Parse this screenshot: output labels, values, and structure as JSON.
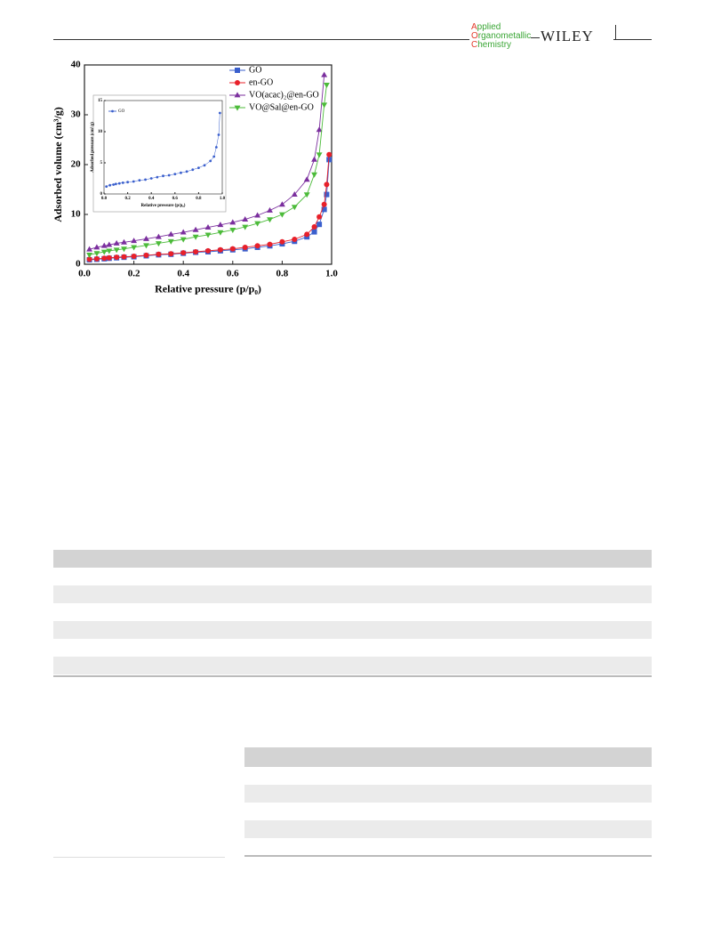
{
  "header": {
    "journal": [
      "Applied",
      "Organometallic",
      "Chemistry"
    ],
    "publisher": "WILEY"
  },
  "chart_data": [
    {
      "type": "line",
      "xlabel": "Relative pressure (p/p₀)",
      "ylabel": "Adsorbed volume (cm³/g)",
      "xlim": [
        0,
        1
      ],
      "ylim": [
        0,
        40
      ],
      "xticks": [
        {
          "value": 0,
          "label": "0.0"
        },
        {
          "value": 0.2,
          "label": "0.2"
        },
        {
          "value": 0.4,
          "label": "0.4"
        },
        {
          "value": 0.6,
          "label": "0.6"
        },
        {
          "value": 0.8,
          "label": "0.8"
        },
        {
          "value": 1,
          "label": "1.0"
        }
      ],
      "yticks": [
        0,
        10,
        20,
        30,
        40
      ],
      "x": [
        0.02,
        0.05,
        0.08,
        0.1,
        0.13,
        0.16,
        0.2,
        0.25,
        0.3,
        0.35,
        0.4,
        0.45,
        0.5,
        0.55,
        0.6,
        0.65,
        0.7,
        0.75,
        0.8,
        0.85,
        0.9,
        0.93,
        0.95,
        0.97,
        0.98,
        0.99
      ],
      "series": [
        {
          "name": "GO",
          "color": "#3a5fcd",
          "marker": "square",
          "values": [
            0.9,
            1.0,
            1.1,
            1.2,
            1.3,
            1.4,
            1.5,
            1.7,
            1.9,
            2.0,
            2.2,
            2.4,
            2.5,
            2.7,
            2.9,
            3.1,
            3.4,
            3.7,
            4.1,
            4.6,
            5.5,
            6.5,
            8,
            11,
            14,
            21
          ]
        },
        {
          "name": "en-GO",
          "color": "#e8202a",
          "marker": "circle",
          "values": [
            1.0,
            1.1,
            1.2,
            1.3,
            1.4,
            1.5,
            1.6,
            1.8,
            2.0,
            2.1,
            2.3,
            2.5,
            2.7,
            2.9,
            3.1,
            3.4,
            3.7,
            4.0,
            4.5,
            5.0,
            6.0,
            7.5,
            9.5,
            12,
            16,
            22
          ]
        },
        {
          "name": "VO(acac)₂@en-GO",
          "color": "#7b2f9e",
          "marker": "triangle-up",
          "values": [
            3.0,
            3.4,
            3.7,
            3.9,
            4.2,
            4.4,
            4.7,
            5.1,
            5.5,
            6.0,
            6.4,
            6.9,
            7.4,
            7.9,
            8.4,
            9.0,
            9.8,
            10.8,
            12.0,
            14.0,
            17,
            21,
            27,
            38,
            null,
            null
          ]
        },
        {
          "name": "VO@Sal@en-GO",
          "color": "#4cbb3a",
          "marker": "triangle-down",
          "values": [
            1.9,
            2.2,
            2.5,
            2.7,
            2.9,
            3.1,
            3.4,
            3.8,
            4.2,
            4.6,
            5.0,
            5.5,
            5.9,
            6.4,
            6.9,
            7.5,
            8.2,
            9.0,
            10.0,
            11.5,
            14,
            18,
            22,
            32,
            36,
            null
          ]
        }
      ]
    },
    {
      "type": "line",
      "xlabel": "Relative pressure (p/p₀)",
      "ylabel": "Adsorbed pressure (cm³/g)",
      "xlim": [
        0,
        1
      ],
      "ylim": [
        0,
        15
      ],
      "xticks": [
        {
          "value": 0,
          "label": "0.0"
        },
        {
          "value": 0.2,
          "label": "0.2"
        },
        {
          "value": 0.4,
          "label": "0.4"
        },
        {
          "value": 0.6,
          "label": "0.6"
        },
        {
          "value": 0.8,
          "label": "0.8"
        },
        {
          "value": 1,
          "label": "1.0"
        }
      ],
      "yticks": [
        0,
        5,
        10,
        15
      ],
      "x": [
        0.02,
        0.05,
        0.08,
        0.1,
        0.13,
        0.16,
        0.2,
        0.25,
        0.3,
        0.35,
        0.4,
        0.45,
        0.5,
        0.55,
        0.6,
        0.65,
        0.7,
        0.75,
        0.8,
        0.85,
        0.9,
        0.93,
        0.95,
        0.97,
        0.98
      ],
      "series": [
        {
          "name": "GO",
          "color": "#3a5fcd",
          "marker": "circle",
          "values": [
            1.2,
            1.4,
            1.5,
            1.6,
            1.7,
            1.8,
            1.9,
            2.0,
            2.2,
            2.3,
            2.5,
            2.7,
            2.9,
            3.0,
            3.2,
            3.4,
            3.6,
            3.9,
            4.2,
            4.6,
            5.3,
            6.0,
            7.5,
            9.5,
            13
          ]
        }
      ]
    }
  ]
}
